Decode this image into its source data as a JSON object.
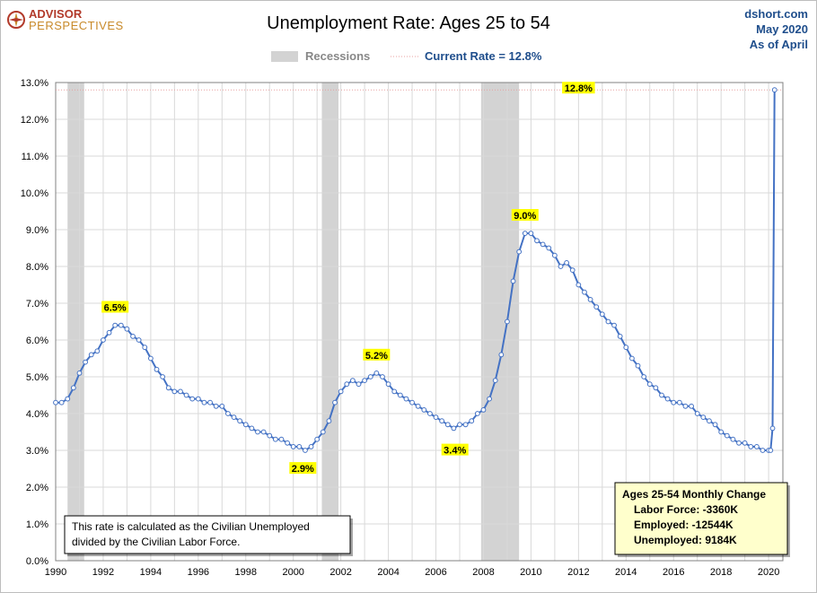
{
  "logo": {
    "top": "ADVISOR",
    "bottom": "PERSPECTIVES"
  },
  "source": {
    "site": "dshort.com",
    "date": "May 2020",
    "as_of": "As of April"
  },
  "legend": {
    "recessions": "Recessions",
    "current": "Current Rate = 12.8%"
  },
  "note": {
    "line1": "This rate is calculated as the Civilian Unemployed",
    "line2": "divided by the Civilian Labor Force."
  },
  "monthly_change": {
    "title": "Ages 25-54  Monthly Change",
    "labor_force": "Labor Force:  -3360K",
    "employed": "Employed:  -12544K",
    "unemployed": "Unemployed:  9184K"
  },
  "colors": {
    "line": "#4472c4",
    "recession": "#d3d3d3",
    "highlight": "#ffff00",
    "grid": "#d9d9d9"
  },
  "chart_data": {
    "type": "line",
    "title": "Unemployment Rate: Ages 25 to 54",
    "xlabel": "",
    "ylabel": "",
    "xlim": [
      1990,
      2020.6
    ],
    "ylim": [
      0,
      13
    ],
    "y_ticks": [
      "0.0%",
      "1.0%",
      "2.0%",
      "3.0%",
      "4.0%",
      "5.0%",
      "6.0%",
      "7.0%",
      "8.0%",
      "9.0%",
      "10.0%",
      "11.0%",
      "12.0%",
      "13.0%"
    ],
    "x_ticks": [
      "1990",
      "1992",
      "1994",
      "1996",
      "1998",
      "2000",
      "2002",
      "2004",
      "2006",
      "2008",
      "2010",
      "2012",
      "2014",
      "2016",
      "2018",
      "2020"
    ],
    "grid": true,
    "recessions": [
      [
        1990.5,
        1991.2
      ],
      [
        2001.2,
        2001.9
      ],
      [
        2007.9,
        2009.5
      ]
    ],
    "series": [
      {
        "values_note_free": true,
        "points": [
          [
            1990.0,
            4.3
          ],
          [
            1990.25,
            4.3
          ],
          [
            1990.5,
            4.4
          ],
          [
            1990.75,
            4.7
          ],
          [
            1991.0,
            5.1
          ],
          [
            1991.25,
            5.4
          ],
          [
            1991.5,
            5.6
          ],
          [
            1991.75,
            5.7
          ],
          [
            1992.0,
            6.0
          ],
          [
            1992.25,
            6.2
          ],
          [
            1992.5,
            6.4
          ],
          [
            1992.75,
            6.4
          ],
          [
            1993.0,
            6.3
          ],
          [
            1993.25,
            6.1
          ],
          [
            1993.5,
            6.0
          ],
          [
            1993.75,
            5.8
          ],
          [
            1994.0,
            5.5
          ],
          [
            1994.25,
            5.2
          ],
          [
            1994.5,
            5.0
          ],
          [
            1994.75,
            4.7
          ],
          [
            1995.0,
            4.6
          ],
          [
            1995.25,
            4.6
          ],
          [
            1995.5,
            4.5
          ],
          [
            1995.75,
            4.4
          ],
          [
            1996.0,
            4.4
          ],
          [
            1996.25,
            4.3
          ],
          [
            1996.5,
            4.3
          ],
          [
            1996.75,
            4.2
          ],
          [
            1997.0,
            4.2
          ],
          [
            1997.25,
            4.0
          ],
          [
            1997.5,
            3.9
          ],
          [
            1997.75,
            3.8
          ],
          [
            1998.0,
            3.7
          ],
          [
            1998.25,
            3.6
          ],
          [
            1998.5,
            3.5
          ],
          [
            1998.75,
            3.5
          ],
          [
            1999.0,
            3.4
          ],
          [
            1999.25,
            3.3
          ],
          [
            1999.5,
            3.3
          ],
          [
            1999.75,
            3.2
          ],
          [
            2000.0,
            3.1
          ],
          [
            2000.25,
            3.1
          ],
          [
            2000.5,
            3.0
          ],
          [
            2000.75,
            3.1
          ],
          [
            2001.0,
            3.3
          ],
          [
            2001.25,
            3.5
          ],
          [
            2001.5,
            3.8
          ],
          [
            2001.75,
            4.3
          ],
          [
            2002.0,
            4.6
          ],
          [
            2002.25,
            4.8
          ],
          [
            2002.5,
            4.9
          ],
          [
            2002.75,
            4.8
          ],
          [
            2003.0,
            4.9
          ],
          [
            2003.25,
            5.0
          ],
          [
            2003.5,
            5.1
          ],
          [
            2003.75,
            5.0
          ],
          [
            2004.0,
            4.8
          ],
          [
            2004.25,
            4.6
          ],
          [
            2004.5,
            4.5
          ],
          [
            2004.75,
            4.4
          ],
          [
            2005.0,
            4.3
          ],
          [
            2005.25,
            4.2
          ],
          [
            2005.5,
            4.1
          ],
          [
            2005.75,
            4.0
          ],
          [
            2006.0,
            3.9
          ],
          [
            2006.25,
            3.8
          ],
          [
            2006.5,
            3.7
          ],
          [
            2006.75,
            3.6
          ],
          [
            2007.0,
            3.7
          ],
          [
            2007.25,
            3.7
          ],
          [
            2007.5,
            3.8
          ],
          [
            2007.75,
            4.0
          ],
          [
            2008.0,
            4.1
          ],
          [
            2008.25,
            4.4
          ],
          [
            2008.5,
            4.9
          ],
          [
            2008.75,
            5.6
          ],
          [
            2009.0,
            6.5
          ],
          [
            2009.25,
            7.6
          ],
          [
            2009.5,
            8.4
          ],
          [
            2009.75,
            8.9
          ],
          [
            2010.0,
            8.9
          ],
          [
            2010.25,
            8.7
          ],
          [
            2010.5,
            8.6
          ],
          [
            2010.75,
            8.5
          ],
          [
            2011.0,
            8.3
          ],
          [
            2011.25,
            8.0
          ],
          [
            2011.5,
            8.1
          ],
          [
            2011.75,
            7.9
          ],
          [
            2012.0,
            7.5
          ],
          [
            2012.25,
            7.3
          ],
          [
            2012.5,
            7.1
          ],
          [
            2012.75,
            6.9
          ],
          [
            2013.0,
            6.7
          ],
          [
            2013.25,
            6.5
          ],
          [
            2013.5,
            6.4
          ],
          [
            2013.75,
            6.1
          ],
          [
            2014.0,
            5.8
          ],
          [
            2014.25,
            5.5
          ],
          [
            2014.5,
            5.3
          ],
          [
            2014.75,
            5.0
          ],
          [
            2015.0,
            4.8
          ],
          [
            2015.25,
            4.7
          ],
          [
            2015.5,
            4.5
          ],
          [
            2015.75,
            4.4
          ],
          [
            2016.0,
            4.3
          ],
          [
            2016.25,
            4.3
          ],
          [
            2016.5,
            4.2
          ],
          [
            2016.75,
            4.2
          ],
          [
            2017.0,
            4.0
          ],
          [
            2017.25,
            3.9
          ],
          [
            2017.5,
            3.8
          ],
          [
            2017.75,
            3.7
          ],
          [
            2018.0,
            3.5
          ],
          [
            2018.25,
            3.4
          ],
          [
            2018.5,
            3.3
          ],
          [
            2018.75,
            3.2
          ],
          [
            2019.0,
            3.2
          ],
          [
            2019.25,
            3.1
          ],
          [
            2019.5,
            3.1
          ],
          [
            2019.75,
            3.0
          ],
          [
            2020.0,
            3.0
          ],
          [
            2020.083,
            3.0
          ],
          [
            2020.167,
            3.6
          ],
          [
            2020.25,
            12.8
          ]
        ]
      }
    ],
    "data_labels": [
      {
        "x": 1992.5,
        "y": 6.5,
        "text": "6.5%",
        "place": "above"
      },
      {
        "x": 2000.4,
        "y": 2.9,
        "text": "2.9%",
        "place": "below"
      },
      {
        "x": 2003.5,
        "y": 5.2,
        "text": "5.2%",
        "place": "above"
      },
      {
        "x": 2006.8,
        "y": 3.4,
        "text": "3.4%",
        "place": "below"
      },
      {
        "x": 2009.75,
        "y": 9.0,
        "text": "9.0%",
        "place": "above"
      },
      {
        "x": 2020.25,
        "y": 12.8,
        "text": "12.8%",
        "place": "far-left"
      }
    ]
  }
}
